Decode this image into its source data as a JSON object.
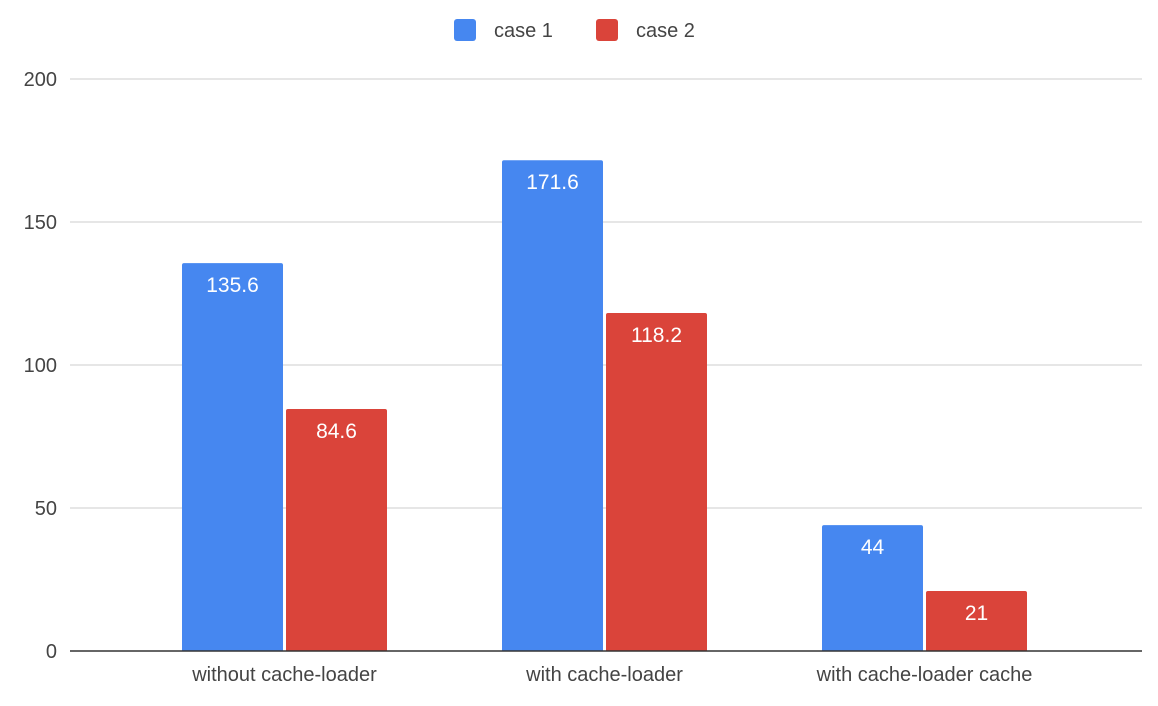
{
  "chart_data": {
    "type": "bar",
    "title": "",
    "xlabel": "",
    "ylabel": "",
    "categories": [
      "without cache-loader",
      "with cache-loader",
      "with cache-loader cache"
    ],
    "series": [
      {
        "name": "case 1",
        "color": "#4687f0",
        "values": [
          135.6,
          171.6,
          44
        ]
      },
      {
        "name": "case 2",
        "color": "#da443a",
        "values": [
          84.6,
          118.2,
          21
        ]
      }
    ],
    "ylim": [
      0,
      200
    ],
    "yticks": [
      0,
      50,
      100,
      150,
      200
    ],
    "grid": true,
    "legend_position": "top-center",
    "data_labels": true
  }
}
